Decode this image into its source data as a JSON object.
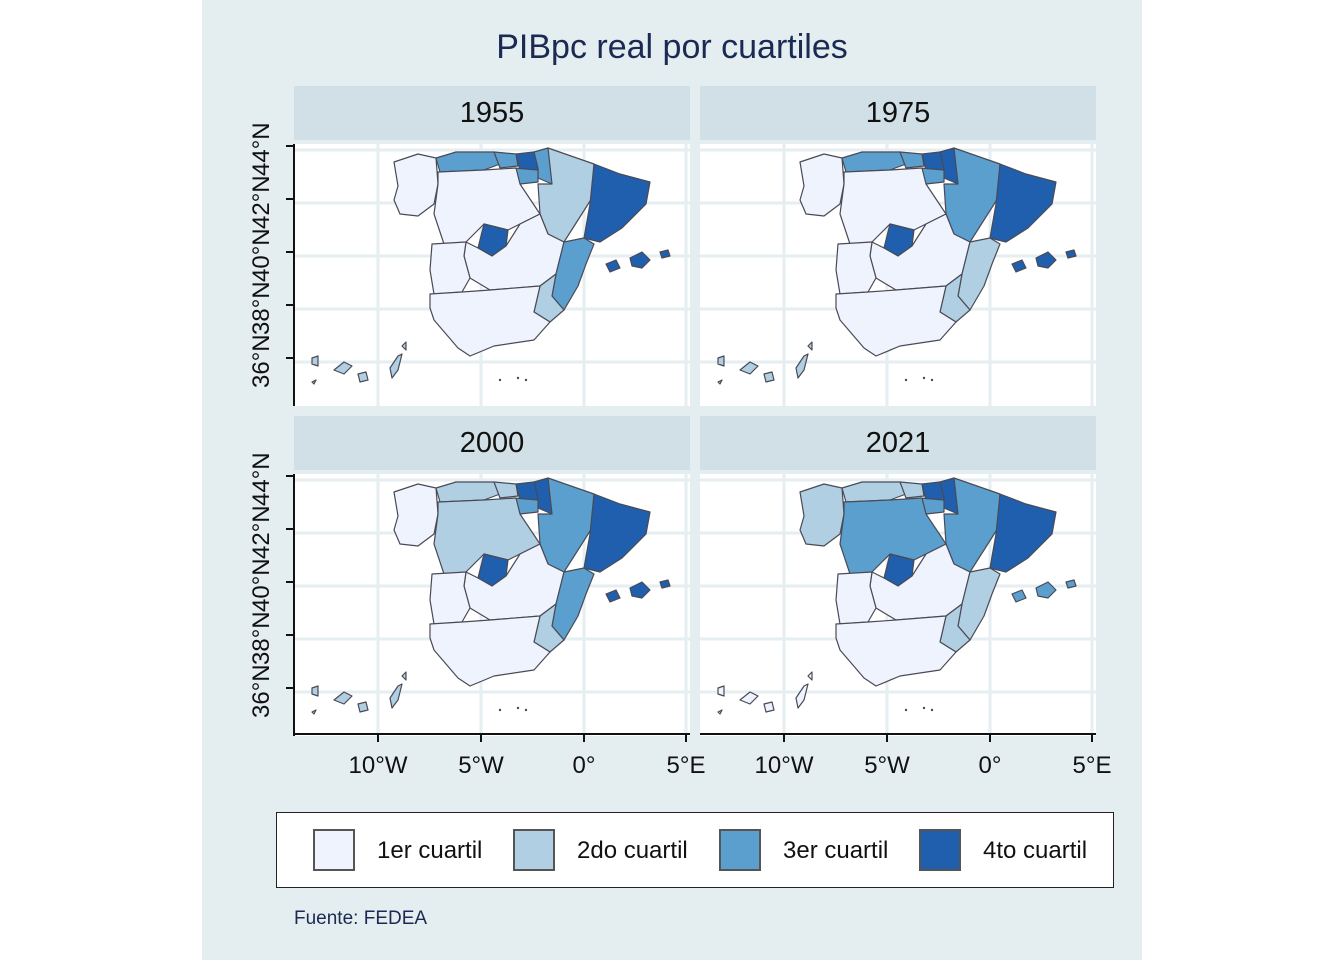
{
  "title": "PIBpc real por cuartiles",
  "source": "Fuente: FEDEA",
  "legend": [
    {
      "label": "1er cuartil",
      "color": "#eef3fe"
    },
    {
      "label": "2do cuartil",
      "color": "#b0cfe3"
    },
    {
      "label": "3er cuartil",
      "color": "#5b9fce"
    },
    {
      "label": "4to cuartil",
      "color": "#1f5fad"
    }
  ],
  "axes": {
    "y_ticks": [
      "36°N",
      "38°N",
      "40°N",
      "42°N",
      "44°N"
    ],
    "x_ticks": [
      "10°W",
      "5°W",
      "0°",
      "5°E"
    ]
  },
  "panels": [
    {
      "year": "1955",
      "regions": {
        "galicia": 0,
        "asturias": 2,
        "cantabria": 2,
        "pais_vasco": 3,
        "navarra": 2,
        "la_rioja": 2,
        "aragon": 1,
        "cataluna": 3,
        "castilla_leon": 0,
        "madrid": 3,
        "castilla_mancha": 0,
        "extremadura": 0,
        "valencia": 2,
        "murcia": 1,
        "andalucia": 0,
        "baleares": 3,
        "canarias": 1
      }
    },
    {
      "year": "1975",
      "regions": {
        "galicia": 0,
        "asturias": 2,
        "cantabria": 2,
        "pais_vasco": 3,
        "navarra": 3,
        "la_rioja": 2,
        "aragon": 2,
        "cataluna": 3,
        "castilla_leon": 0,
        "madrid": 3,
        "castilla_mancha": 0,
        "extremadura": 0,
        "valencia": 1,
        "murcia": 1,
        "andalucia": 0,
        "baleares": 3,
        "canarias": 1
      }
    },
    {
      "year": "2000",
      "regions": {
        "galicia": 0,
        "asturias": 1,
        "cantabria": 1,
        "pais_vasco": 3,
        "navarra": 3,
        "la_rioja": 2,
        "aragon": 2,
        "cataluna": 3,
        "castilla_leon": 1,
        "madrid": 3,
        "castilla_mancha": 0,
        "extremadura": 0,
        "valencia": 2,
        "murcia": 1,
        "andalucia": 0,
        "baleares": 3,
        "canarias": 1
      }
    },
    {
      "year": "2021",
      "regions": {
        "galicia": 1,
        "asturias": 1,
        "cantabria": 1,
        "pais_vasco": 3,
        "navarra": 3,
        "la_rioja": 2,
        "aragon": 2,
        "cataluna": 3,
        "castilla_leon": 2,
        "madrid": 3,
        "castilla_mancha": 0,
        "extremadura": 0,
        "valencia": 1,
        "murcia": 1,
        "andalucia": 0,
        "baleares": 2,
        "canarias": 0
      }
    }
  ]
}
